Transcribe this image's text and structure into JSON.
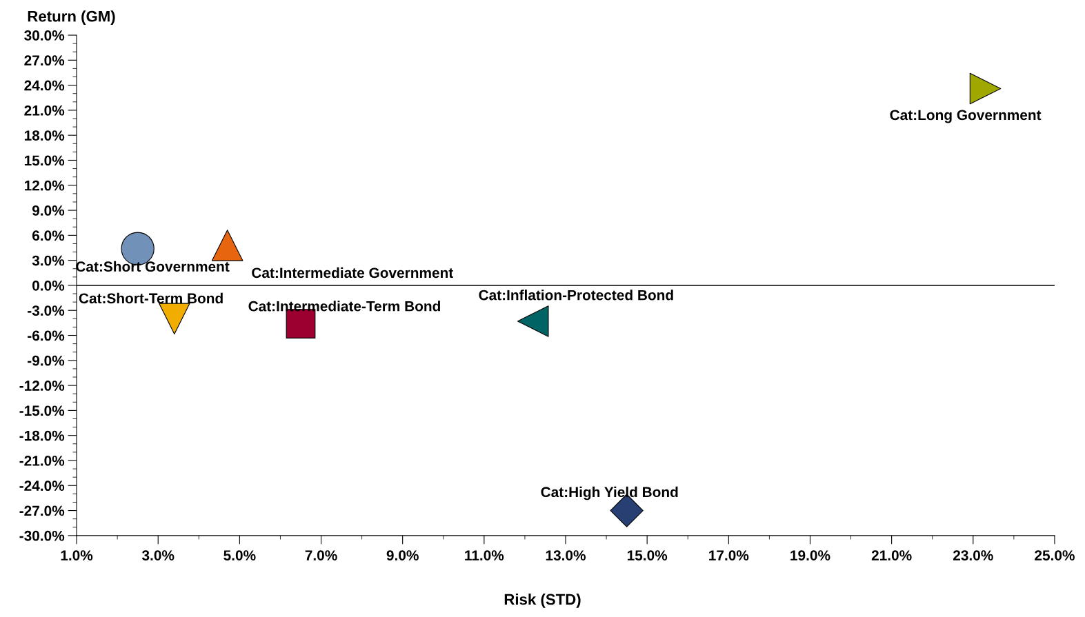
{
  "chart_data": {
    "type": "scatter",
    "xlabel": "Risk (STD)",
    "ylabel": "Return (GM)",
    "xlim": [
      1,
      25
    ],
    "ylim": [
      -30,
      30
    ],
    "xticks": [
      {
        "value": 1,
        "label": "1.0%"
      },
      {
        "value": 3,
        "label": "3.0%"
      },
      {
        "value": 5,
        "label": "5.0%"
      },
      {
        "value": 7,
        "label": "7.0%"
      },
      {
        "value": 9,
        "label": "9.0%"
      },
      {
        "value": 11,
        "label": "11.0%"
      },
      {
        "value": 13,
        "label": "13.0%"
      },
      {
        "value": 15,
        "label": "15.0%"
      },
      {
        "value": 17,
        "label": "17.0%"
      },
      {
        "value": 19,
        "label": "19.0%"
      },
      {
        "value": 21,
        "label": "21.0%"
      },
      {
        "value": 23,
        "label": "23.0%"
      },
      {
        "value": 25,
        "label": "25.0%"
      }
    ],
    "yticks": [
      {
        "value": 30,
        "label": "30.0%"
      },
      {
        "value": 27,
        "label": "27.0%"
      },
      {
        "value": 24,
        "label": "24.0%"
      },
      {
        "value": 21,
        "label": "21.0%"
      },
      {
        "value": 18,
        "label": "18.0%"
      },
      {
        "value": 15,
        "label": "15.0%"
      },
      {
        "value": 12,
        "label": "12.0%"
      },
      {
        "value": 9,
        "label": "9.0%"
      },
      {
        "value": 6,
        "label": "6.0%"
      },
      {
        "value": 3,
        "label": "3.0%"
      },
      {
        "value": 0,
        "label": "0.0%"
      },
      {
        "value": -3,
        "label": "-3.0%"
      },
      {
        "value": -6,
        "label": "-6.0%"
      },
      {
        "value": -9,
        "label": "-9.0%"
      },
      {
        "value": -12,
        "label": "-12.0%"
      },
      {
        "value": -15,
        "label": "-15.0%"
      },
      {
        "value": -18,
        "label": "-18.0%"
      },
      {
        "value": -21,
        "label": "-21.0%"
      },
      {
        "value": -24,
        "label": "-24.0%"
      },
      {
        "value": -27,
        "label": "-27.0%"
      },
      {
        "value": -30,
        "label": "-30.0%"
      }
    ],
    "grid": false,
    "legend": false,
    "ref_lines": [
      {
        "axis": "y",
        "value": 0,
        "color": "#000000"
      }
    ],
    "series": [
      {
        "name": "Cat:Short Government",
        "color": "#7191b8",
        "marker": "circle",
        "x": [
          2.5
        ],
        "values": [
          4.4
        ]
      },
      {
        "name": "Cat:Intermediate Government",
        "color": "#e8650f",
        "marker": "triangle",
        "x": [
          4.7
        ],
        "values": [
          4.8
        ]
      },
      {
        "name": "Cat:Short-Term Bond",
        "color": "#f2ae00",
        "marker": "triangle_down",
        "x": [
          3.4
        ],
        "values": [
          -4.0
        ]
      },
      {
        "name": "Cat:Intermediate-Term Bond",
        "color": "#9b0030",
        "marker": "square",
        "x": [
          6.5
        ],
        "values": [
          -4.6
        ]
      },
      {
        "name": "Cat:Inflation-Protected Bond",
        "color": "#006464",
        "marker": "triangle_left",
        "x": [
          12.2
        ],
        "values": [
          -4.3
        ]
      },
      {
        "name": "Cat:High Yield Bond",
        "color": "#283f73",
        "marker": "diamond",
        "x": [
          14.5
        ],
        "values": [
          -27.0
        ]
      },
      {
        "name": "Cat:Long Government",
        "color": "#a0a800",
        "marker": "triangle_right",
        "x": [
          23.3
        ],
        "values": [
          23.6
        ]
      }
    ]
  }
}
